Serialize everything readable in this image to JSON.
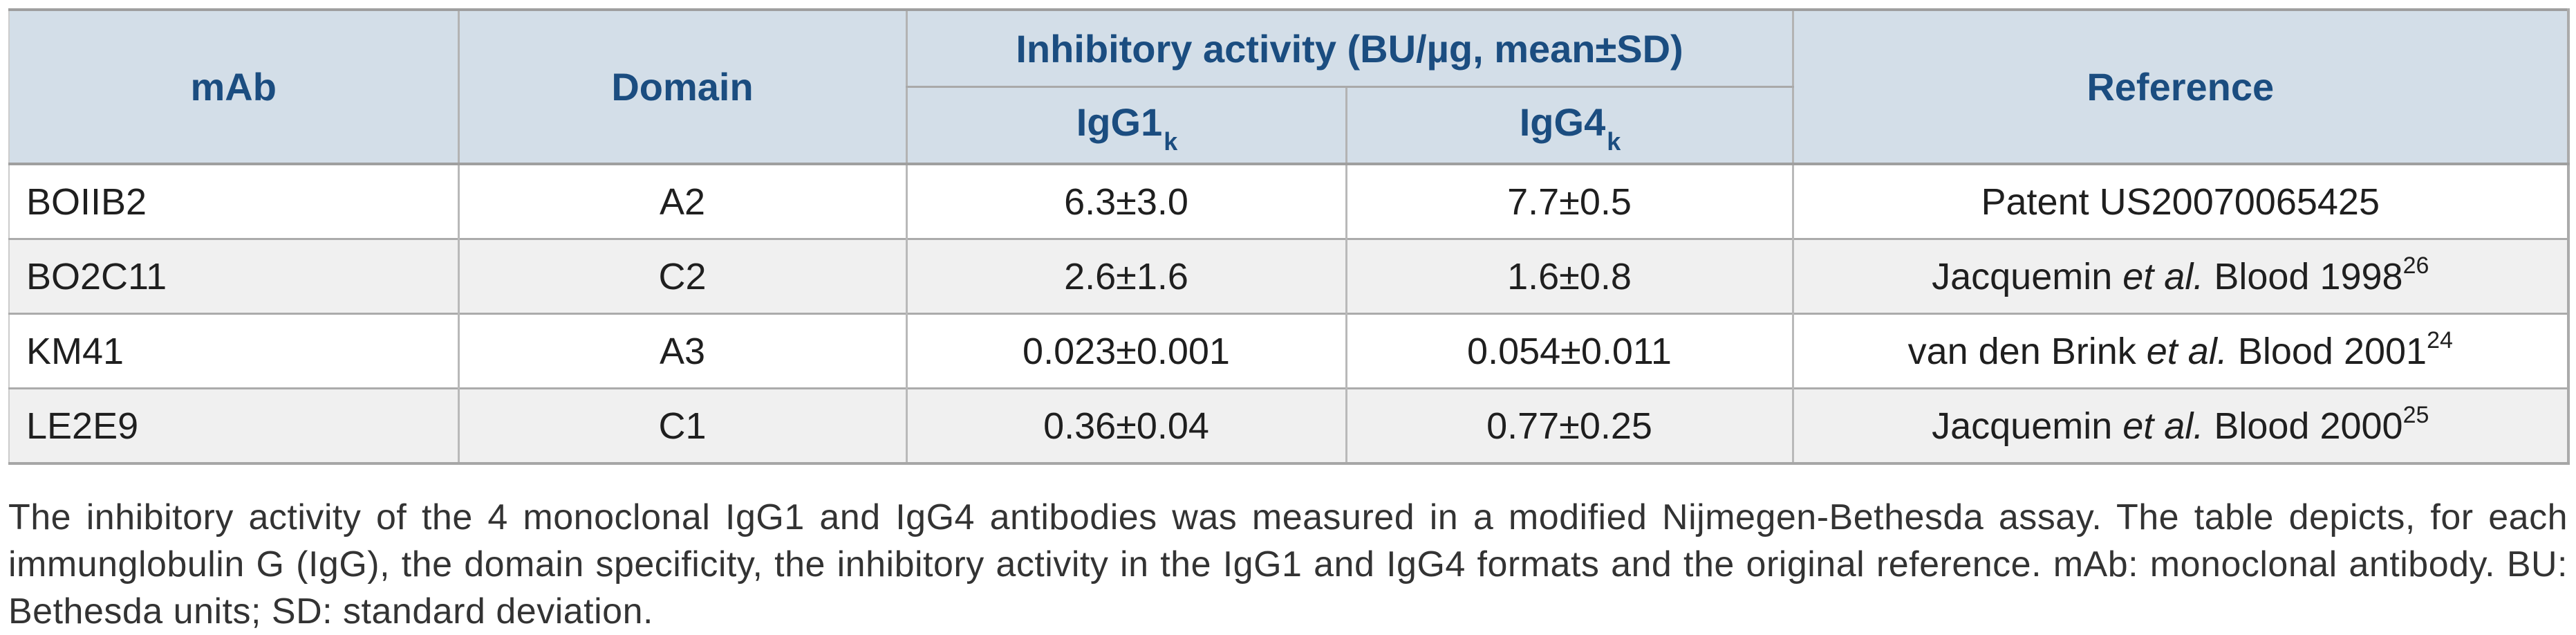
{
  "colors": {
    "header_bg": "#d3dee8",
    "header_text": "#1b4d80",
    "row_alt_bg": "#f0f0f0",
    "row_bg": "#ffffff",
    "border": "#a9a9a9",
    "body_text": "#1f1f1f",
    "caption_text": "#333333"
  },
  "table": {
    "columns": {
      "mab": "mAb",
      "domain": "Domain",
      "activity_group": "Inhibitory activity (BU/µg, mean±SD)",
      "igg1_base": "IgG1",
      "igg1_sub": "k",
      "igg4_base": "IgG4",
      "igg4_sub": "k",
      "reference": "Reference"
    },
    "rows": [
      {
        "mab": "BOIIB2",
        "domain": "A2",
        "igg1": "6.3±3.0",
        "igg4": "7.7±0.5",
        "ref_pre": "Patent US20070065425",
        "ref_italic": "",
        "ref_post": "",
        "ref_sup": ""
      },
      {
        "mab": "BO2C11",
        "domain": "C2",
        "igg1": "2.6±1.6",
        "igg4": "1.6±0.8",
        "ref_pre": "Jacquemin ",
        "ref_italic": "et al.",
        "ref_post": " Blood 1998",
        "ref_sup": "26"
      },
      {
        "mab": "KM41",
        "domain": "A3",
        "igg1": "0.023±0.001",
        "igg4": "0.054±0.011",
        "ref_pre": "van den Brink ",
        "ref_italic": "et al.",
        "ref_post": " Blood 2001",
        "ref_sup": "24"
      },
      {
        "mab": "LE2E9",
        "domain": "C1",
        "igg1": "0.36±0.04",
        "igg4": "0.77±0.25",
        "ref_pre": "Jacquemin ",
        "ref_italic": "et al.",
        "ref_post": " Blood 2000",
        "ref_sup": "25"
      }
    ]
  },
  "caption": "The inhibitory activity of the 4 monoclonal IgG1 and IgG4 antibodies was measured in a modified Nijmegen-Bethesda assay. The table depicts, for each immunglobulin G (IgG), the domain specificity, the inhibitory activity in the IgG1 and IgG4 formats and the original reference. mAb: monoclonal antibody. BU: Bethesda units; SD: standard deviation."
}
